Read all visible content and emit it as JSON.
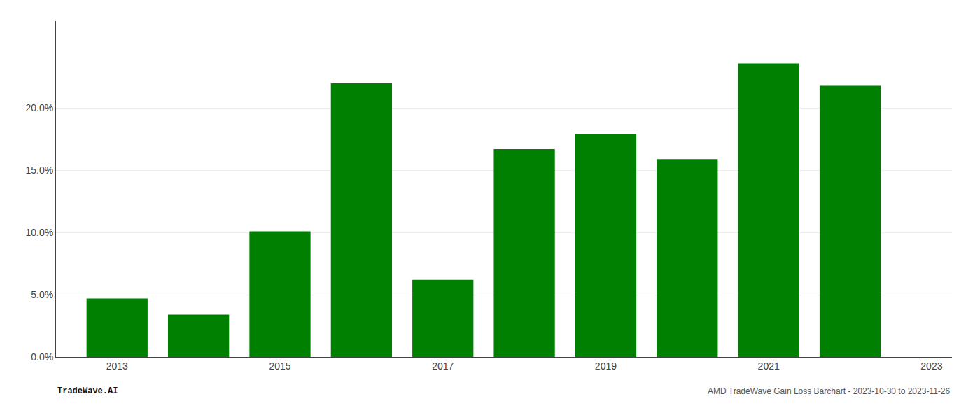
{
  "chart_data": {
    "type": "bar",
    "categories": [
      "2013",
      null,
      "2015",
      null,
      "2017",
      null,
      "2019",
      null,
      "2021",
      null,
      "2023"
    ],
    "values": [
      0.047,
      0.034,
      0.101,
      0.22,
      0.062,
      0.167,
      0.179,
      0.159,
      0.236,
      0.218,
      null
    ],
    "color": "#008000",
    "ylim": [
      0.0,
      0.27
    ],
    "yticks": [
      {
        "value": 0.0,
        "label": "0.0%"
      },
      {
        "value": 0.05,
        "label": "5.0%"
      },
      {
        "value": 0.1,
        "label": "10.0%"
      },
      {
        "value": 0.15,
        "label": "15.0%"
      },
      {
        "value": 0.2,
        "label": "20.0%"
      }
    ],
    "grid": true,
    "annotations": [
      "TradeWave.AI",
      "AMD TradeWave Gain Loss Barchart - 2023-10-30 to 2023-11-26"
    ]
  }
}
